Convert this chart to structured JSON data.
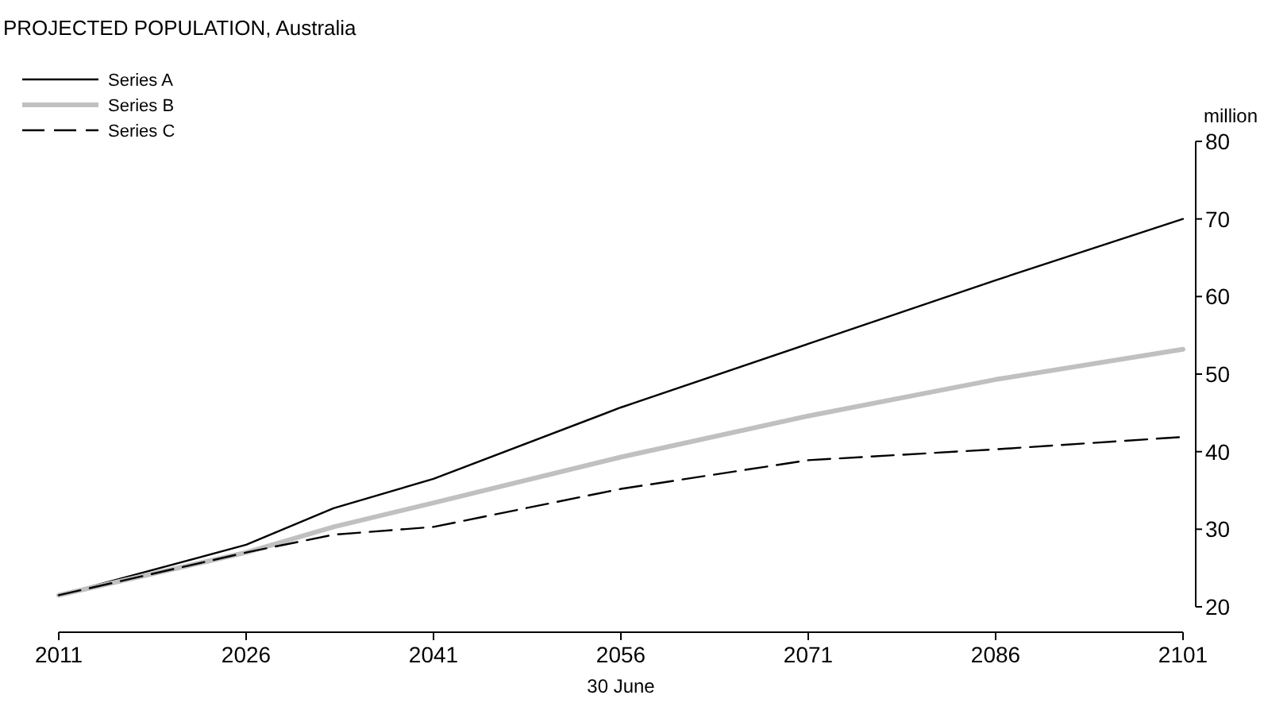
{
  "chart_data": {
    "type": "line",
    "title": "PROJECTED POPULATION, Australia",
    "xlabel": "30 June",
    "ylabel": "million",
    "x": [
      2011,
      2026,
      2033,
      2041,
      2056,
      2071,
      2086,
      2101
    ],
    "series": [
      {
        "name": "Series A",
        "color": "#000000",
        "line_style": "solid",
        "values": [
          21.5,
          28.0,
          32.7,
          36.5,
          45.7,
          53.9,
          62.1,
          70.0
        ]
      },
      {
        "name": "Series B",
        "color": "#c0c0c0",
        "line_style": "solid",
        "values": [
          21.5,
          27.0,
          30.3,
          33.4,
          39.3,
          44.6,
          49.3,
          53.2
        ]
      },
      {
        "name": "Series C",
        "color": "#000000",
        "line_style": "dashed",
        "values": [
          21.5,
          27.0,
          29.3,
          30.3,
          35.2,
          38.9,
          40.3,
          41.9
        ]
      }
    ],
    "xlim": [
      2011,
      2101
    ],
    "xticks": [
      2011,
      2026,
      2041,
      2056,
      2071,
      2086,
      2101
    ],
    "ylim": [
      20,
      80
    ],
    "yticks": [
      20,
      30,
      40,
      50,
      60,
      70,
      80
    ],
    "legend": "top left",
    "grid": false,
    "marker": "none"
  }
}
